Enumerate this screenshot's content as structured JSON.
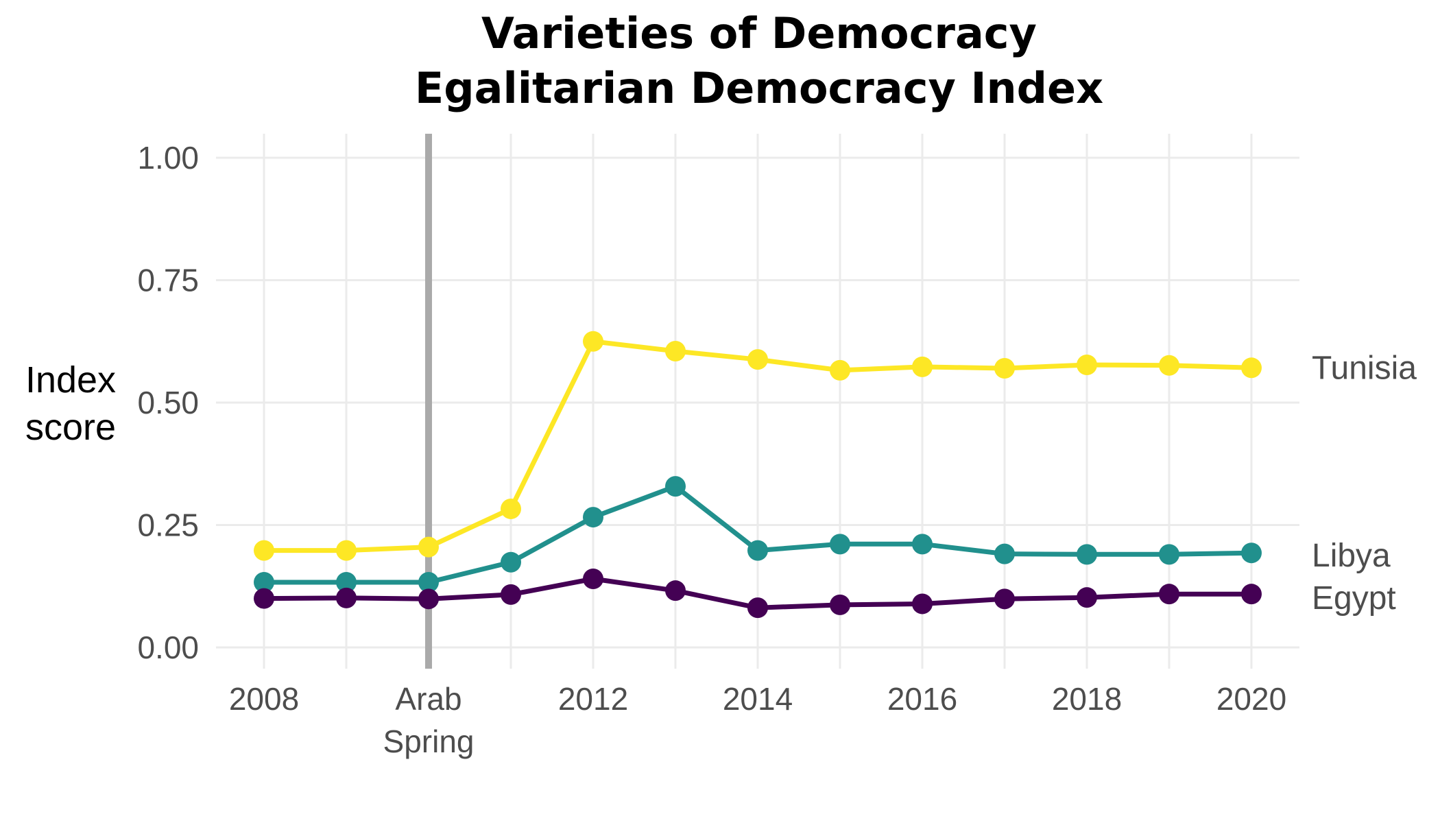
{
  "chart_data": {
    "type": "line",
    "title_line1": "Varieties of Democracy",
    "title_line2": "Egalitarian Democracy Index",
    "ylabel_line1": "Index",
    "ylabel_line2": "score",
    "xlabel": "",
    "x": [
      2008,
      2009,
      2010,
      2011,
      2012,
      2013,
      2014,
      2015,
      2016,
      2017,
      2018,
      2019,
      2020
    ],
    "xlim": [
      2008,
      2020
    ],
    "ylim": [
      0,
      1
    ],
    "y_ticks": [
      0,
      0.25,
      0.5,
      0.75,
      1.0
    ],
    "y_tick_labels": [
      "0.00",
      "0.25",
      "0.50",
      "0.75",
      "1.00"
    ],
    "x_ticks": [
      2008,
      2010,
      2012,
      2014,
      2016,
      2018,
      2020
    ],
    "x_tick_labels": [
      "2008",
      "Arab\nSpring",
      "2012",
      "2014",
      "2016",
      "2018",
      "2020"
    ],
    "event_line_x": 2010,
    "event_line_color": "#aaaaaa",
    "grid": true,
    "legend": "direct labels at right end of lines",
    "series": [
      {
        "name": "Tunisia",
        "color": "#fde725",
        "values": [
          0.198,
          0.198,
          0.205,
          0.283,
          0.625,
          0.605,
          0.588,
          0.566,
          0.573,
          0.57,
          0.577,
          0.576,
          0.571
        ]
      },
      {
        "name": "Libya",
        "color": "#21908d",
        "values": [
          0.133,
          0.133,
          0.133,
          0.174,
          0.266,
          0.329,
          0.198,
          0.211,
          0.211,
          0.191,
          0.19,
          0.19,
          0.193
        ]
      },
      {
        "name": "Egypt",
        "color": "#440154",
        "values": [
          0.1,
          0.101,
          0.099,
          0.108,
          0.14,
          0.116,
          0.081,
          0.087,
          0.089,
          0.099,
          0.102,
          0.109,
          0.109
        ]
      }
    ]
  }
}
